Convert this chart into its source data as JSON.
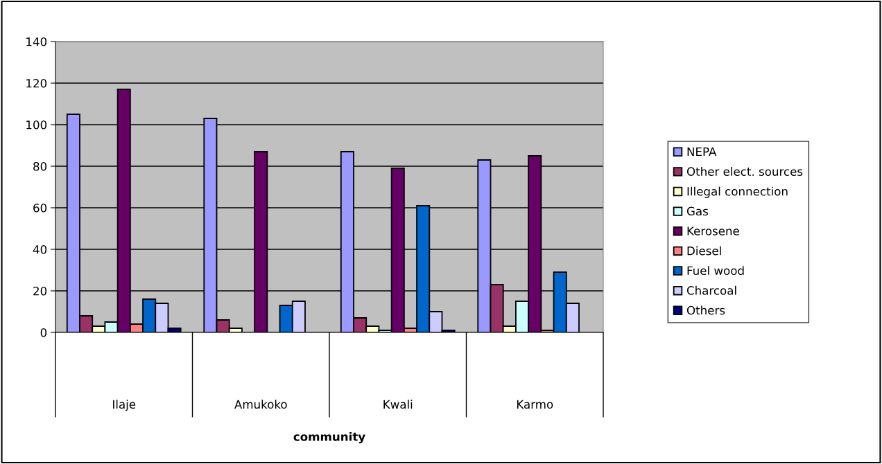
{
  "chart_data": {
    "type": "bar",
    "xlabel": "community",
    "categories": [
      "Ilaje",
      "Amukoko",
      "Kwali",
      "Karmo"
    ],
    "series": [
      {
        "name": "NEPA",
        "color": "#9999ff",
        "values": [
          105,
          103,
          87,
          83
        ]
      },
      {
        "name": "Other elect. sources",
        "color": "#993366",
        "values": [
          8,
          6,
          7,
          23
        ]
      },
      {
        "name": "Illegal connection",
        "color": "#ffffcc",
        "values": [
          3,
          2,
          3,
          3
        ]
      },
      {
        "name": "Gas",
        "color": "#ccffff",
        "values": [
          5,
          null,
          1,
          15
        ]
      },
      {
        "name": "Kerosene",
        "color": "#660066",
        "values": [
          117,
          87,
          79,
          85
        ]
      },
      {
        "name": "Diesel",
        "color": "#ff8080",
        "values": [
          4,
          null,
          2,
          1
        ]
      },
      {
        "name": "Fuel wood",
        "color": "#0066cc",
        "values": [
          16,
          13,
          61,
          29
        ]
      },
      {
        "name": "Charcoal",
        "color": "#ccccff",
        "values": [
          14,
          15,
          10,
          14
        ]
      },
      {
        "name": "Others",
        "color": "#000080",
        "values": [
          2,
          null,
          1,
          null
        ]
      }
    ],
    "ylim": [
      0,
      140
    ],
    "yticks": [
      0,
      20,
      40,
      60,
      80,
      100,
      120,
      140
    ],
    "grid": "y",
    "legend": "right"
  }
}
